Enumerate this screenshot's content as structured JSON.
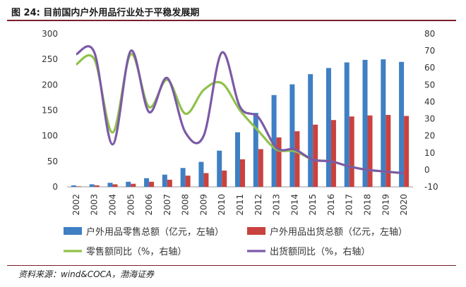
{
  "title": "图 24: 目前国内户外用品行业处于平稳发展期",
  "source": "资料来源：wind&COCA，渤海证券",
  "chart_data": {
    "type": "bar+line",
    "categories": [
      "2002",
      "2003",
      "2004",
      "2005",
      "2006",
      "2007",
      "2008",
      "2009",
      "2010",
      "2011",
      "2012",
      "2013",
      "2014",
      "2015",
      "2016",
      "2017",
      "2018",
      "2019",
      "2020"
    ],
    "left_axis": {
      "range": [
        0,
        300
      ],
      "ticks": [
        "0",
        "50",
        "100",
        "150",
        "200",
        "250",
        "300"
      ]
    },
    "right_axis": {
      "range": [
        -10,
        80
      ],
      "ticks": [
        "-10",
        "0",
        "10",
        "20",
        "30",
        "40",
        "50",
        "60",
        "70",
        "80"
      ]
    },
    "series": [
      {
        "name": "户外用品零售总额（亿元，左轴）",
        "type": "bar",
        "axis": "left",
        "color": "#3f7fc4",
        "values": [
          3,
          5,
          8,
          10,
          17,
          24,
          37,
          49,
          71,
          107,
          145,
          180,
          201,
          221,
          233,
          244,
          249,
          250,
          245
        ]
      },
      {
        "name": "户外用品出货总额（亿元，左轴）",
        "type": "bar",
        "axis": "left",
        "color": "#c9423f",
        "values": [
          1,
          3,
          5,
          6,
          10,
          14,
          22,
          27,
          32,
          54,
          74,
          97,
          109,
          122,
          131,
          138,
          140,
          141,
          139
        ]
      },
      {
        "name": "零售额同比（%，右轴）",
        "type": "line",
        "axis": "right",
        "color": "#8fc24a",
        "values": [
          62,
          65,
          22,
          68,
          37,
          53,
          33,
          47,
          51,
          35,
          23,
          12,
          11,
          6,
          5,
          2,
          0,
          -1,
          -2
        ]
      },
      {
        "name": "出货额同比（%，右轴）",
        "type": "line",
        "axis": "right",
        "color": "#7c5aa6",
        "values": [
          68,
          69,
          15,
          70,
          34,
          54,
          22,
          20,
          69,
          37,
          31,
          13,
          12,
          6,
          5,
          2,
          0,
          -1,
          -2
        ]
      }
    ]
  }
}
